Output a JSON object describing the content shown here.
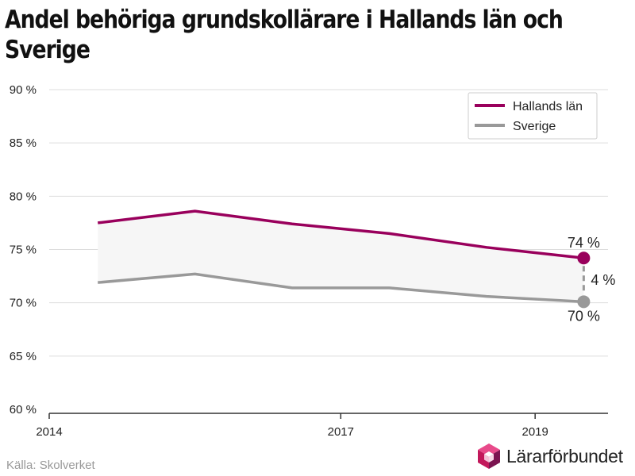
{
  "chart_data": {
    "type": "line",
    "title": "Andel behöriga grundskollärare i Hallands län och Sverige",
    "x": [
      2014.5,
      2015.5,
      2016.5,
      2017.5,
      2018.5,
      2019.5
    ],
    "series": [
      {
        "name": "Hallands län",
        "values": [
          77.5,
          78.6,
          77.4,
          76.5,
          75.2,
          74.2
        ],
        "color": "#99005c"
      },
      {
        "name": "Sverige",
        "values": [
          71.9,
          72.7,
          71.4,
          71.4,
          70.6,
          70.1
        ],
        "color": "#999999"
      }
    ],
    "ylim": [
      60,
      90
    ],
    "xlim": [
      2014,
      2019.75
    ],
    "y_ticks": [
      "60 %",
      "65 %",
      "70 %",
      "75 %",
      "80 %",
      "85 %",
      "90 %"
    ],
    "x_ticks": [
      "2014",
      "2017",
      "2019"
    ],
    "end_labels": {
      "hallands": "74 %",
      "sverige": "70 %",
      "difference": "4 %"
    },
    "legend_position": "top-right",
    "grid": true,
    "fill_between_color": "#f6f6f6"
  },
  "footer": {
    "source": "Källa: Skolverket",
    "brand": "Lärarförbundet",
    "brand_icon": "cube-logo-icon",
    "brand_colors": [
      "#c2185b",
      "#7b1450",
      "#e84a8a"
    ]
  }
}
